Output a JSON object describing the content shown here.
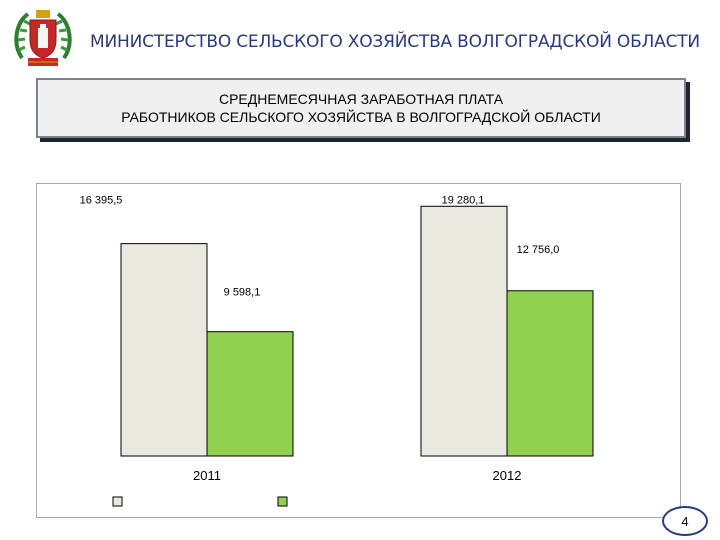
{
  "header": {
    "title": "МИНИСТЕРСТВО СЕЛЬСКОГО ХОЗЯЙСТВА ВОЛГОГРАДСКОЙ ОБЛАСТИ"
  },
  "title_box": {
    "line1": "СРЕДНЕМЕСЯЧНАЯ ЗАРАБОТНАЯ ПЛАТА",
    "line2": "РАБОТНИКОВ СЕЛЬСКОГО ХОЗЯЙСТВА В ВОЛГОГРАДСКОЙ ОБЛАСТИ"
  },
  "page_number": "4",
  "colors": {
    "series1": "#ebe8df",
    "series2": "#92d050",
    "header_text": "#2a3a78"
  },
  "chart_data": {
    "type": "bar",
    "categories": [
      "2011",
      "2012"
    ],
    "series": [
      {
        "values": [
          16395.5,
          19280.1
        ],
        "labels": [
          "16 395,5",
          "19 280,1"
        ],
        "color": "#ebe8df"
      },
      {
        "values": [
          9598.1,
          12756.0
        ],
        "labels": [
          "9 598,1",
          "12 756,0"
        ],
        "color": "#92d050"
      }
    ],
    "title": "",
    "xlabel": "",
    "ylabel": "",
    "ylim": [
      0,
      21000
    ],
    "grid": false,
    "legend": "bottom"
  }
}
